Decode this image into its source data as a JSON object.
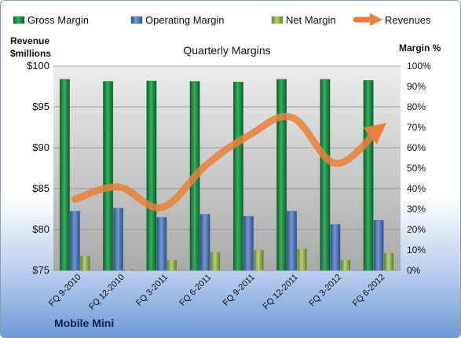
{
  "brand": "Mobile Mini",
  "colors": {
    "gross": "#1e8a45",
    "operating": "#4f77b8",
    "net": "#9bbb59",
    "revenue": "#e9813a"
  },
  "chart_data": {
    "type": "bar",
    "title": "Quarterly Margins",
    "y_left_label": [
      "Revenue",
      "$millions"
    ],
    "y_right_label": "Margin %",
    "categories": [
      "FQ 9-2010",
      "FQ 12-2010",
      "FQ 3-2011",
      "FQ 6-2011",
      "FQ 9-2011",
      "FQ 12-2011",
      "FQ 3-2012",
      "FQ 6-2012"
    ],
    "series": [
      {
        "name": "Gross Margin",
        "axis": "right",
        "values": [
          93.5,
          92.5,
          92.7,
          92.5,
          92.2,
          93.5,
          93.5,
          93.0
        ]
      },
      {
        "name": "Operating Margin",
        "axis": "right",
        "values": [
          29,
          30.5,
          26,
          27.5,
          26.5,
          29,
          22.5,
          24.5
        ]
      },
      {
        "name": "Net Margin",
        "axis": "right",
        "values": [
          7,
          0.5,
          5,
          9,
          10,
          10.5,
          5,
          8.5
        ]
      },
      {
        "name": "Revenues",
        "axis": "left",
        "type": "line",
        "values": [
          83.7,
          85.2,
          82.7,
          87.8,
          91.5,
          93.7,
          88.1,
          92.3
        ]
      }
    ],
    "y_left": {
      "min": 75,
      "max": 100,
      "ticks": [
        "$75",
        "$80",
        "$85",
        "$90",
        "$95",
        "$100"
      ]
    },
    "y_right": {
      "min": 0,
      "max": 100,
      "ticks": [
        "0%",
        "10%",
        "20%",
        "30%",
        "40%",
        "50%",
        "60%",
        "70%",
        "80%",
        "90%",
        "100%"
      ]
    },
    "legend_position": "top",
    "grid": true
  }
}
